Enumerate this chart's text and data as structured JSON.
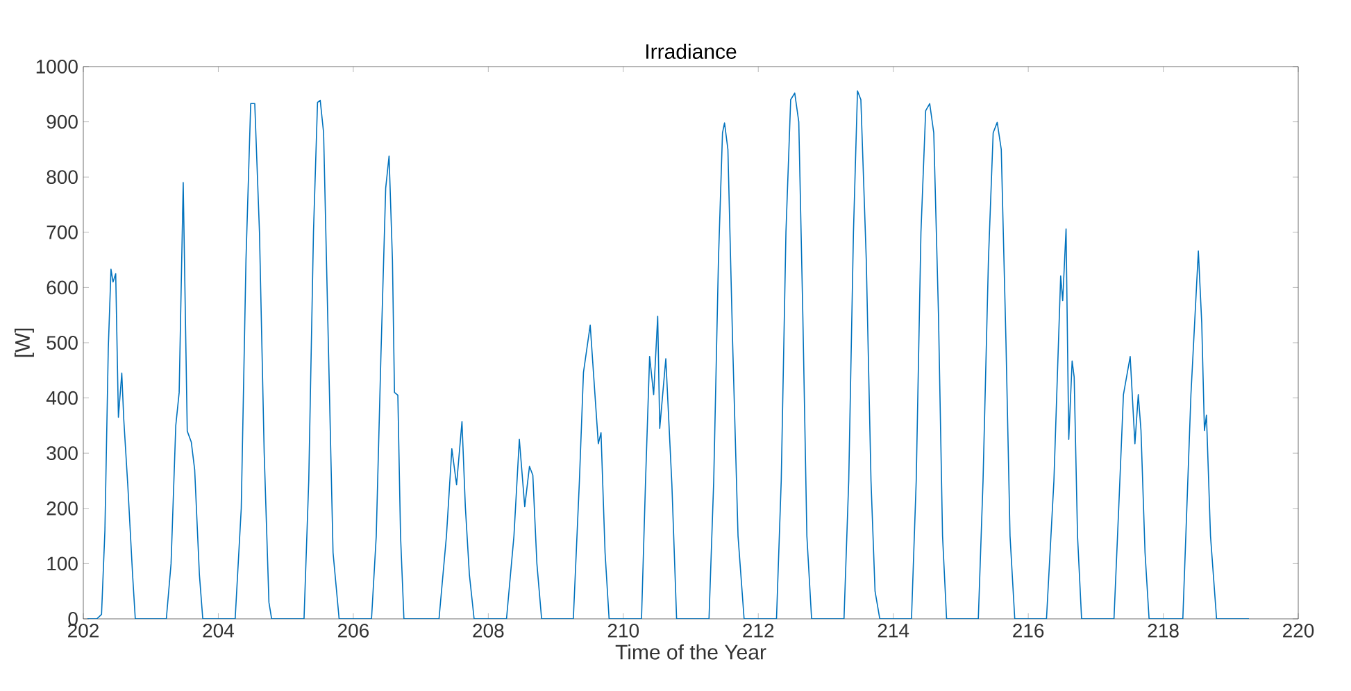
{
  "chart_data": {
    "type": "line",
    "title": "Irradiance",
    "xlabel": "Time of the Year",
    "ylabel": "[W]",
    "xlim": [
      202,
      220
    ],
    "ylim": [
      0,
      1000
    ],
    "xticks": [
      202,
      204,
      206,
      208,
      210,
      212,
      214,
      216,
      218,
      220
    ],
    "yticks": [
      0,
      100,
      200,
      300,
      400,
      500,
      600,
      700,
      800,
      900,
      1000
    ],
    "marker": "none",
    "line_style": "solid",
    "series": [
      {
        "color": "#0072bd",
        "x": [
          202.06,
          202.2,
          202.27,
          202.32,
          202.37,
          202.41,
          202.44,
          202.48,
          202.52,
          202.57,
          202.6,
          202.66,
          202.73,
          202.77,
          203.23,
          203.3,
          203.37,
          203.42,
          203.48,
          203.54,
          203.6,
          203.65,
          203.72,
          203.77,
          204.25,
          204.34,
          204.41,
          204.48,
          204.54,
          204.61,
          204.68,
          204.75,
          204.79,
          205.27,
          205.34,
          205.41,
          205.47,
          205.51,
          205.56,
          205.63,
          205.7,
          205.79,
          206.27,
          206.34,
          206.41,
          206.48,
          206.53,
          206.58,
          206.61,
          206.66,
          206.7,
          206.75,
          207.27,
          207.38,
          207.46,
          207.53,
          207.61,
          207.66,
          207.72,
          207.79,
          208.27,
          208.38,
          208.46,
          208.54,
          208.61,
          208.66,
          208.72,
          208.79,
          209.26,
          209.35,
          209.41,
          209.51,
          209.63,
          209.67,
          209.73,
          209.79,
          210.27,
          210.33,
          210.39,
          210.45,
          210.51,
          210.54,
          210.63,
          210.72,
          210.79,
          211.27,
          211.34,
          211.41,
          211.47,
          211.5,
          211.55,
          211.62,
          211.7,
          211.79,
          212.27,
          212.34,
          212.41,
          212.48,
          212.54,
          212.6,
          212.66,
          212.72,
          212.79,
          213.27,
          213.34,
          213.41,
          213.47,
          213.52,
          213.6,
          213.67,
          213.73,
          213.8,
          214.27,
          214.34,
          214.41,
          214.48,
          214.54,
          214.6,
          214.67,
          214.73,
          214.79,
          215.26,
          215.33,
          215.41,
          215.48,
          215.54,
          215.6,
          215.67,
          215.73,
          215.8,
          216.27,
          216.38,
          216.48,
          216.51,
          216.56,
          216.6,
          216.65,
          216.68,
          216.73,
          216.79,
          217.27,
          217.34,
          217.41,
          217.51,
          217.58,
          217.63,
          217.67,
          217.73,
          217.79,
          218.29,
          218.41,
          218.52,
          218.57,
          218.61,
          218.64,
          218.7,
          218.79,
          219.27
        ],
        "values": [
          0,
          0,
          8,
          160,
          490,
          633,
          610,
          625,
          365,
          445,
          360,
          240,
          80,
          0,
          0,
          100,
          350,
          410,
          790,
          340,
          320,
          270,
          80,
          0,
          0,
          200,
          650,
          933,
          933,
          700,
          300,
          30,
          0,
          0,
          250,
          700,
          935,
          939,
          880,
          500,
          120,
          0,
          0,
          150,
          480,
          780,
          838,
          650,
          410,
          405,
          150,
          0,
          0,
          150,
          308,
          243,
          357,
          203,
          80,
          0,
          0,
          150,
          325,
          203,
          276,
          260,
          100,
          0,
          0,
          250,
          446,
          532,
          317,
          337,
          120,
          0,
          0,
          250,
          475,
          406,
          548,
          345,
          471,
          243,
          0,
          0,
          250,
          650,
          880,
          898,
          850,
          500,
          150,
          0,
          0,
          250,
          700,
          940,
          952,
          900,
          550,
          150,
          0,
          0,
          250,
          700,
          956,
          940,
          650,
          250,
          50,
          0,
          0,
          250,
          700,
          920,
          933,
          880,
          550,
          150,
          0,
          0,
          250,
          650,
          880,
          899,
          850,
          500,
          150,
          0,
          0,
          250,
          621,
          576,
          706,
          325,
          467,
          438,
          150,
          0,
          0,
          200,
          406,
          475,
          317,
          406,
          341,
          120,
          0,
          0,
          406,
          666,
          536,
          341,
          369,
          150,
          0,
          0
        ]
      }
    ]
  }
}
